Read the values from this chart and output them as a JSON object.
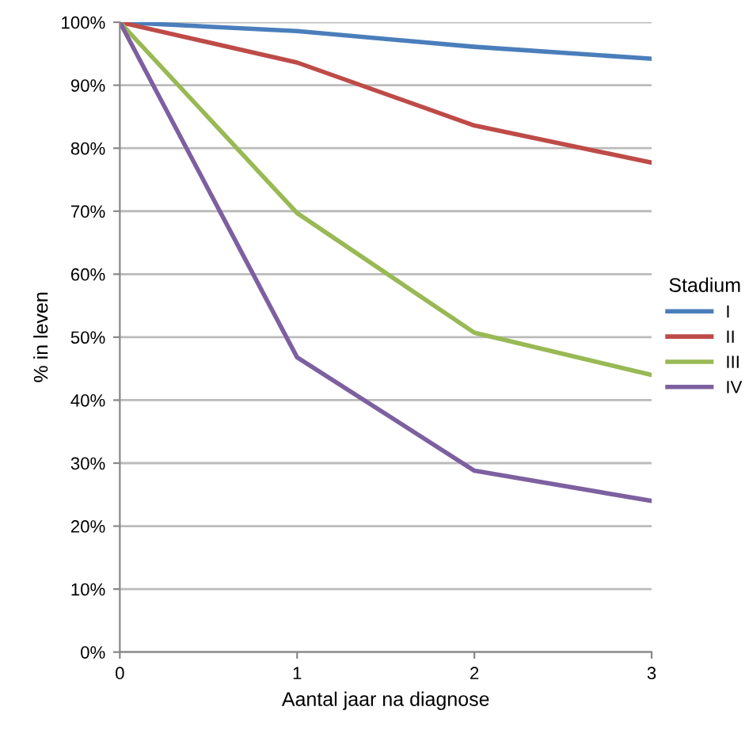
{
  "chart_data": {
    "type": "line",
    "xlabel": "Aantal jaar na diagnose",
    "ylabel": "% in leven",
    "legend_title": "Stadium",
    "legend": "right",
    "x": [
      0,
      1,
      2,
      3
    ],
    "xlim": [
      0,
      3
    ],
    "xticks": [
      0,
      1,
      2,
      3
    ],
    "ylim": [
      0,
      100
    ],
    "yticks": [
      {
        "value": 0,
        "label": "0%"
      },
      {
        "value": 10,
        "label": "10%"
      },
      {
        "value": 20,
        "label": "20%"
      },
      {
        "value": 30,
        "label": "30%"
      },
      {
        "value": 40,
        "label": "40%"
      },
      {
        "value": 50,
        "label": "50%"
      },
      {
        "value": 60,
        "label": "60%"
      },
      {
        "value": 70,
        "label": "70%"
      },
      {
        "value": 80,
        "label": "80%"
      },
      {
        "value": 90,
        "label": "90%"
      },
      {
        "value": 100,
        "label": "100%"
      }
    ],
    "grid": "y",
    "marker": "none",
    "line_style": "solid",
    "series": [
      {
        "name": "I",
        "color": "#4a7ebb",
        "values": [
          100,
          98.6,
          96.1,
          94.2
        ]
      },
      {
        "name": "II",
        "color": "#be4b48",
        "values": [
          100,
          93.6,
          83.6,
          77.7
        ]
      },
      {
        "name": "III",
        "color": "#98b954",
        "values": [
          100,
          69.7,
          50.7,
          44.0
        ]
      },
      {
        "name": "IV",
        "color": "#7d60a0",
        "values": [
          100,
          46.8,
          28.8,
          24.0
        ]
      }
    ]
  }
}
